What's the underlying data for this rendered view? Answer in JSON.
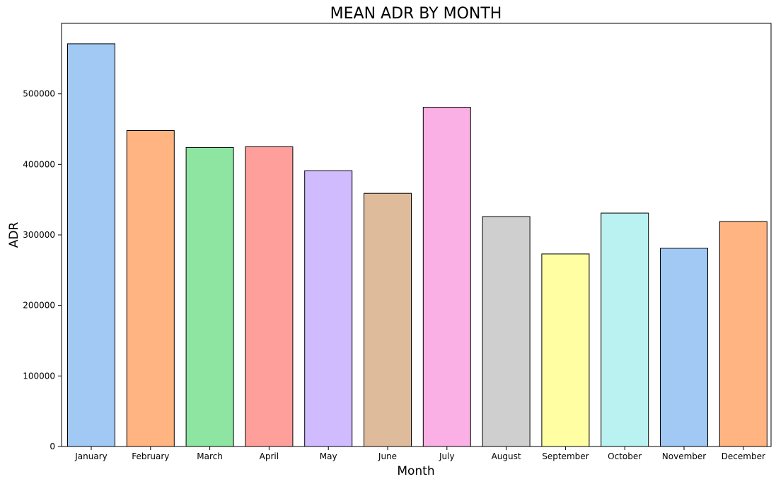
{
  "chart_data": {
    "type": "bar",
    "title": "MEAN ADR BY MONTH",
    "xlabel": "Month",
    "ylabel": "ADR",
    "categories": [
      "January",
      "February",
      "March",
      "April",
      "May",
      "June",
      "July",
      "August",
      "September",
      "October",
      "November",
      "December"
    ],
    "values": [
      571000,
      448000,
      424000,
      425000,
      391000,
      359000,
      481000,
      326000,
      273000,
      331000,
      281000,
      319000
    ],
    "colors": [
      "#a1c9f4",
      "#ffb482",
      "#8de5a1",
      "#ff9f9b",
      "#d0bbff",
      "#debb9b",
      "#fab0e4",
      "#cfcfcf",
      "#fffea3",
      "#b9f2f0",
      "#a1c9f4",
      "#ffb482"
    ],
    "bar_edge_color": "#000000",
    "ylim": [
      0,
      600000
    ],
    "yticks": [
      0,
      100000,
      200000,
      300000,
      400000,
      500000
    ],
    "ytick_labels": [
      "0",
      "100000",
      "200000",
      "300000",
      "400000",
      "500000"
    ],
    "grid": false,
    "legend": false
  }
}
